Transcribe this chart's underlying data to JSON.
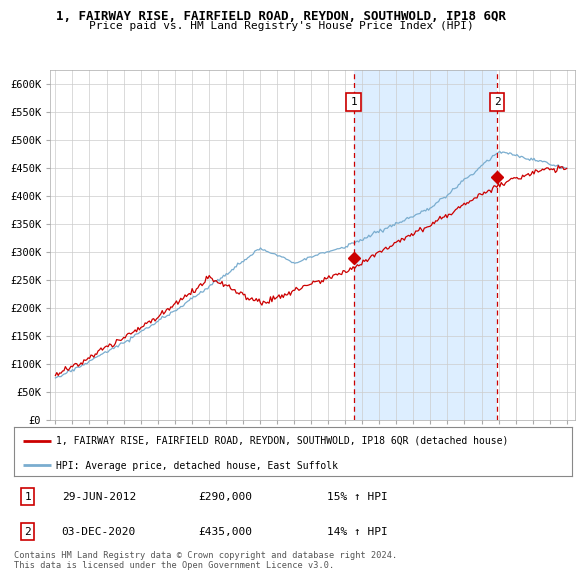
{
  "title": "1, FAIRWAY RISE, FAIRFIELD ROAD, REYDON, SOUTHWOLD, IP18 6QR",
  "subtitle": "Price paid vs. HM Land Registry's House Price Index (HPI)",
  "ylabel_ticks": [
    "£0",
    "£50K",
    "£100K",
    "£150K",
    "£200K",
    "£250K",
    "£300K",
    "£350K",
    "£400K",
    "£450K",
    "£500K",
    "£550K",
    "£600K"
  ],
  "ylim": [
    0,
    625000
  ],
  "xlim_start": 1994.7,
  "xlim_end": 2025.5,
  "bg_color": "#ffffff",
  "fig_bg_color": "#ffffff",
  "red_color": "#cc0000",
  "blue_color": "#7aadcf",
  "shade_color": "#ddeeff",
  "grid_color": "#cccccc",
  "sale1_x": 2012.5,
  "sale1_y": 290000,
  "sale2_x": 2020.92,
  "sale2_y": 435000,
  "legend_line1": "1, FAIRWAY RISE, FAIRFIELD ROAD, REYDON, SOUTHWOLD, IP18 6QR (detached house)",
  "legend_line2": "HPI: Average price, detached house, East Suffolk",
  "annotation1_date": "29-JUN-2012",
  "annotation1_price": "£290,000",
  "annotation1_hpi": "15% ↑ HPI",
  "annotation2_date": "03-DEC-2020",
  "annotation2_price": "£435,000",
  "annotation2_hpi": "14% ↑ HPI",
  "footer": "Contains HM Land Registry data © Crown copyright and database right 2024.\nThis data is licensed under the Open Government Licence v3.0."
}
